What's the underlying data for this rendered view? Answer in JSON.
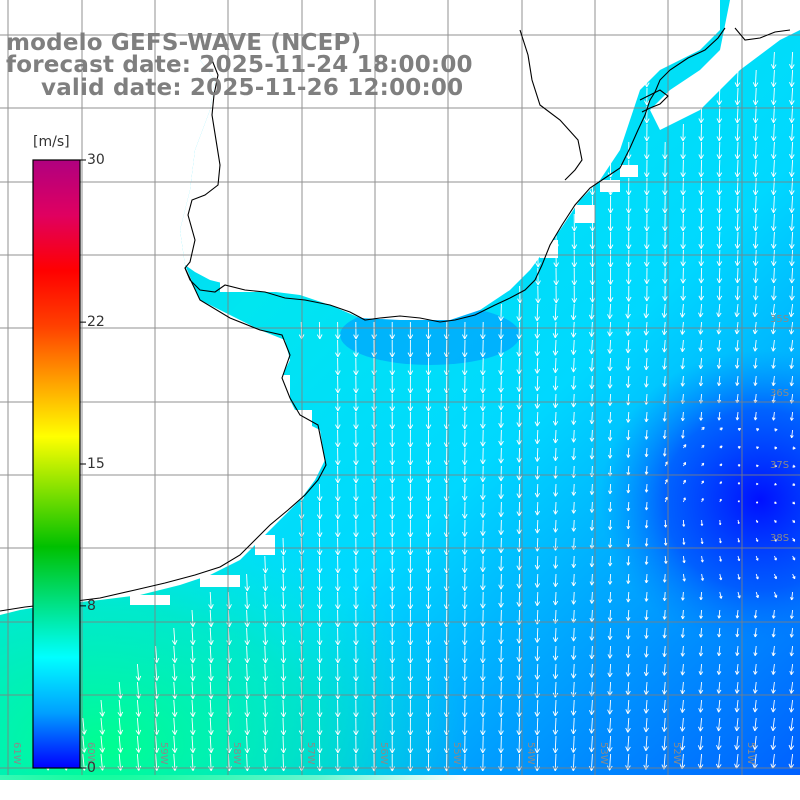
{
  "title": {
    "line1": "modelo GEFS-WAVE (NCEP)",
    "line2": "forecast date: 2025-11-24 18:00:00",
    "line3": "valid date: 2025-11-26 12:00:00"
  },
  "colorbar": {
    "unit": "[m/s]",
    "min": 0,
    "max": 30,
    "labels": [
      "30",
      "22",
      "15",
      "8",
      "0"
    ],
    "label_values": [
      30,
      22,
      15,
      8,
      0
    ],
    "colors": [
      "#0000ff",
      "#00a0ff",
      "#00ffff",
      "#00e080",
      "#00c000",
      "#80e000",
      "#ffff00",
      "#ffa000",
      "#ff4000",
      "#ff0000",
      "#e00060",
      "#b00080"
    ]
  },
  "grid": {
    "lat_labels": [
      "35S",
      "36S",
      "37S",
      "38S"
    ],
    "lon_labels": [
      "61W",
      "60W",
      "59W",
      "58W",
      "57W",
      "56W",
      "55W",
      "54W",
      "53W",
      "52W",
      "51W"
    ]
  },
  "colors": {
    "land": "#ffffff",
    "coast": "#000000",
    "gridline": "#808080",
    "arrow": "#ffffff"
  }
}
